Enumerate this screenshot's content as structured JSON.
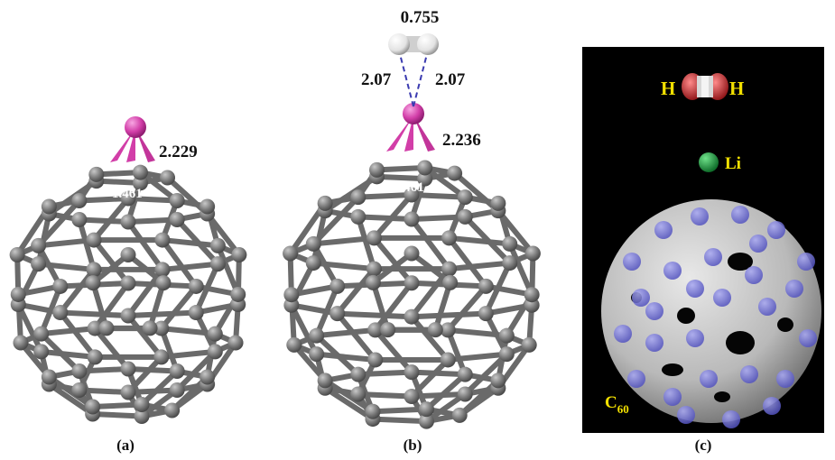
{
  "panels": {
    "a": {
      "caption": "(a)",
      "bond_li_c": "2.229",
      "bond_cc": "1.461"
    },
    "b": {
      "caption": "(b)",
      "bond_hh": "0.755",
      "bond_li_h_left": "2.07",
      "bond_li_h_right": "2.07",
      "bond_li_c": "2.236",
      "bond_cc": "1.461"
    },
    "c": {
      "caption": "(c)",
      "label_h_left": "H",
      "label_h_right": "H",
      "label_li": "Li",
      "label_c": "C",
      "label_c_sub": "60"
    }
  },
  "colors": {
    "carbon": "#7a7a7a",
    "lithium": "#d23ea8",
    "hydrogen": "#e6e6e6",
    "panel_c_background": "#000000",
    "isosurface": "#b9b9b9",
    "atom_dots": "#6f6fd8",
    "li_green": "#1c8c3c",
    "h2_red": "#b51e24",
    "label_yellow": "#f2e000"
  }
}
